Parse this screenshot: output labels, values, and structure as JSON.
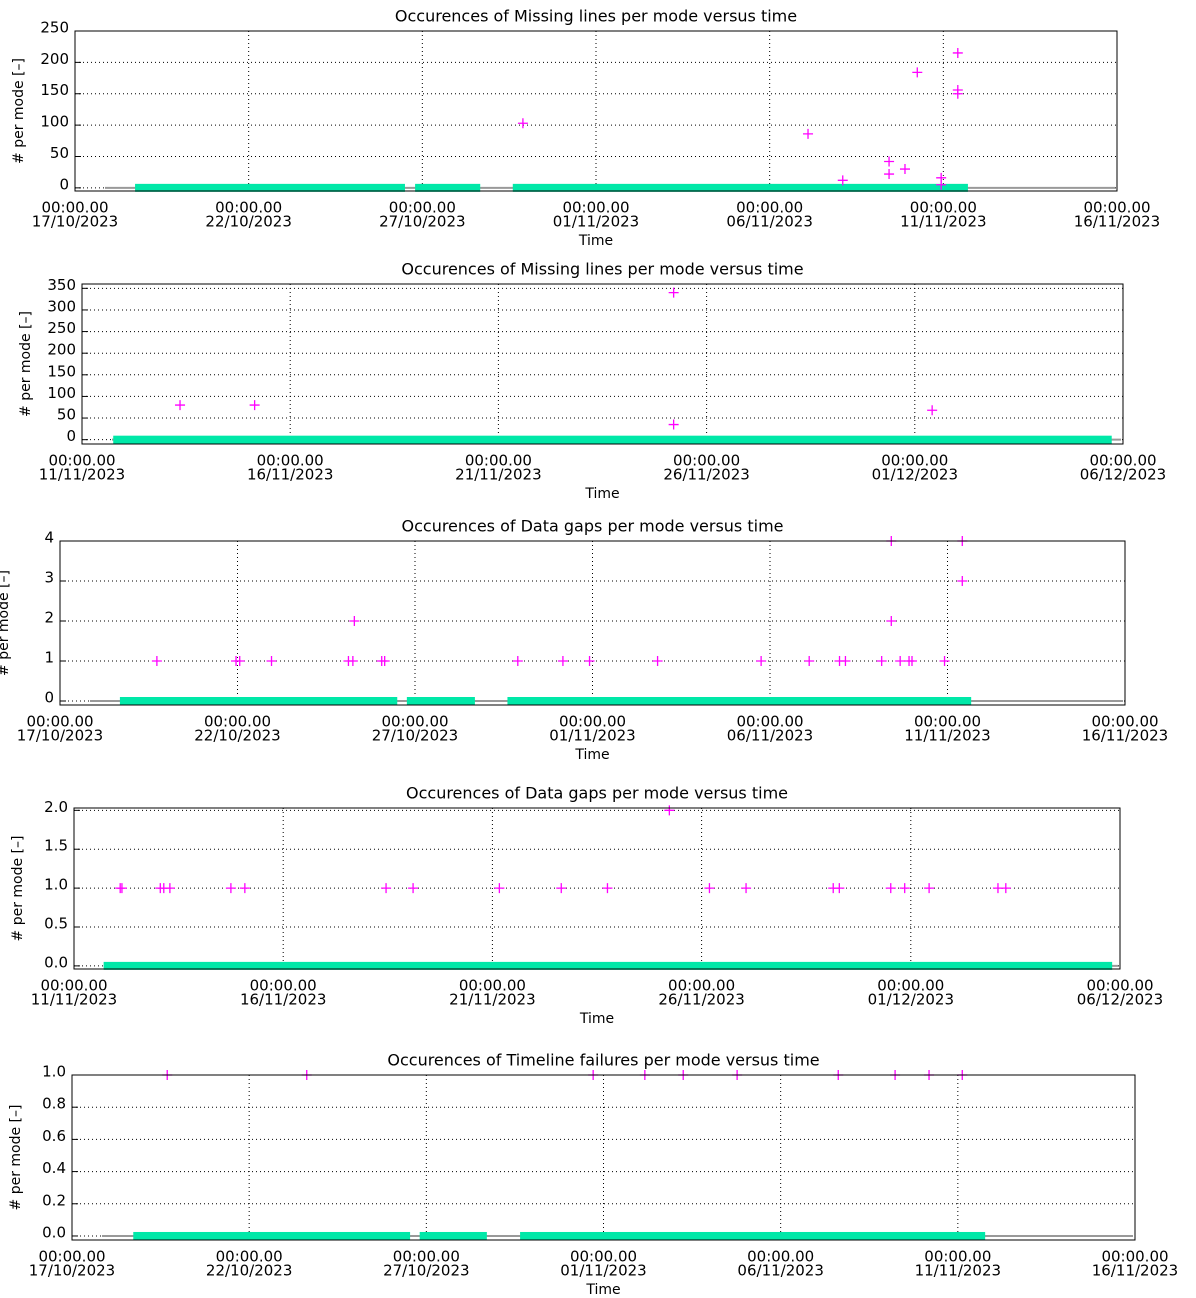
{
  "chart_data": [
    {
      "type": "scatter",
      "title": "Occurences of Missing lines per mode versus time",
      "xlabel": "Time",
      "ylabel": "# per mode [–]",
      "xlim": [
        "2023-10-17T00:00",
        "2023-11-16T00:00"
      ],
      "xticks": [
        {
          "value": "2023-10-17T00:00",
          "label": [
            "00:00.00",
            "17/10/2023"
          ]
        },
        {
          "value": "2023-10-22T00:00",
          "label": [
            "00:00.00",
            "22/10/2023"
          ]
        },
        {
          "value": "2023-10-27T00:00",
          "label": [
            "00:00.00",
            "27/10/2023"
          ]
        },
        {
          "value": "2023-11-01T00:00",
          "label": [
            "00:00.00",
            "01/11/2023"
          ]
        },
        {
          "value": "2023-11-06T00:00",
          "label": [
            "00:00.00",
            "06/11/2023"
          ]
        },
        {
          "value": "2023-11-11T00:00",
          "label": [
            "00:00.00",
            "11/11/2023"
          ]
        },
        {
          "value": "2023-11-16T00:00",
          "label": [
            "00:00.00",
            "16/11/2023"
          ]
        }
      ],
      "ylim": [
        -5,
        250
      ],
      "yticks": [
        0,
        50,
        100,
        150,
        200,
        250
      ],
      "grid": true,
      "color": "#ff00ff",
      "coverage_color": "#00e8a8",
      "x": [
        "2023-10-29T21:30",
        "2023-11-07T02:30",
        "2023-11-08T02:30",
        "2023-11-09T10:30",
        "2023-11-09T10:30",
        "2023-11-09T21:30",
        "2023-11-10T06:00",
        "2023-11-10T22:30",
        "2023-11-10T22:30",
        "2023-11-11T10:00",
        "2023-11-11T10:00",
        "2023-11-11T10:00"
      ],
      "values": [
        103,
        86,
        12,
        42,
        22,
        30,
        184,
        16,
        5,
        215,
        156,
        150
      ],
      "coverage": [
        [
          "2023-10-18T17:30",
          "2023-10-26T12:00"
        ],
        [
          "2023-10-26T19:00",
          "2023-10-28T16:00"
        ],
        [
          "2023-10-29T14:30",
          "2023-11-11T17:00"
        ]
      ]
    },
    {
      "type": "scatter",
      "title": "Occurences of Missing lines per mode versus time",
      "xlabel": "Time",
      "ylabel": "# per mode [–]",
      "xlim": [
        "2023-11-11T00:00",
        "2023-12-06T00:00"
      ],
      "xticks": [
        {
          "value": "2023-11-11T00:00",
          "label": [
            "00:00.00",
            "11/11/2023"
          ]
        },
        {
          "value": "2023-11-16T00:00",
          "label": [
            "00:00.00",
            "16/11/2023"
          ]
        },
        {
          "value": "2023-11-21T00:00",
          "label": [
            "00:00.00",
            "21/11/2023"
          ]
        },
        {
          "value": "2023-11-26T00:00",
          "label": [
            "00:00.00",
            "26/11/2023"
          ]
        },
        {
          "value": "2023-12-01T00:00",
          "label": [
            "00:00.00",
            "01/12/2023"
          ]
        },
        {
          "value": "2023-12-06T00:00",
          "label": [
            "00:00.00",
            "06/12/2023"
          ]
        }
      ],
      "ylim": [
        -10,
        360
      ],
      "yticks": [
        0,
        50,
        100,
        150,
        200,
        250,
        300,
        350
      ],
      "grid": true,
      "color": "#ff00ff",
      "coverage_color": "#00e8a8",
      "x": [
        "2023-11-13T08:30",
        "2023-11-15T03:30",
        "2023-11-25T05:00",
        "2023-11-25T05:00",
        "2023-12-01T10:00"
      ],
      "values": [
        80,
        80,
        340,
        35,
        68
      ],
      "coverage": [
        [
          "2023-11-11T18:00",
          "2023-12-05T17:30"
        ]
      ]
    },
    {
      "type": "scatter",
      "title": "Occurences of Data gaps per mode versus time",
      "xlabel": "Time",
      "ylabel": "# per mode [–]",
      "xlim": [
        "2023-10-17T00:00",
        "2023-11-16T00:00"
      ],
      "xticks": [
        {
          "value": "2023-10-17T00:00",
          "label": [
            "00:00.00",
            "17/10/2023"
          ]
        },
        {
          "value": "2023-10-22T00:00",
          "label": [
            "00:00.00",
            "22/10/2023"
          ]
        },
        {
          "value": "2023-10-27T00:00",
          "label": [
            "00:00.00",
            "27/10/2023"
          ]
        },
        {
          "value": "2023-11-01T00:00",
          "label": [
            "00:00.00",
            "01/11/2023"
          ]
        },
        {
          "value": "2023-11-06T00:00",
          "label": [
            "00:00.00",
            "06/11/2023"
          ]
        },
        {
          "value": "2023-11-11T00:00",
          "label": [
            "00:00.00",
            "11/11/2023"
          ]
        },
        {
          "value": "2023-11-16T00:00",
          "label": [
            "00:00.00",
            "16/11/2023"
          ]
        }
      ],
      "ylim": [
        -0.1,
        4
      ],
      "yticks": [
        0,
        1,
        2,
        3,
        4
      ],
      "grid": true,
      "color": "#ff00ff",
      "coverage_color": "#00e8a8",
      "x": [
        "2023-10-19T17:30",
        "2023-10-21T23:00",
        "2023-10-22T01:30",
        "2023-10-22T23:00",
        "2023-10-25T03:00",
        "2023-10-25T06:00",
        "2023-10-25T07:00",
        "2023-10-26T01:30",
        "2023-10-26T03:30",
        "2023-10-29T21:30",
        "2023-10-31T04:00",
        "2023-10-31T22:00",
        "2023-11-02T20:00",
        "2023-11-05T18:00",
        "2023-11-07T02:30",
        "2023-11-07T23:00",
        "2023-11-08T03:00",
        "2023-11-09T03:30",
        "2023-11-09T10:00",
        "2023-11-09T10:00",
        "2023-11-09T16:00",
        "2023-11-09T22:00",
        "2023-11-10T00:00",
        "2023-11-10T22:00",
        "2023-11-11T10:00",
        "2023-11-11T10:00"
      ],
      "values": [
        1,
        1,
        1,
        1,
        1,
        1,
        2,
        1,
        1,
        1,
        1,
        1,
        1,
        1,
        1,
        1,
        1,
        1,
        4,
        2,
        1,
        1,
        1,
        1,
        4,
        3
      ],
      "coverage": [
        [
          "2023-10-18T16:30",
          "2023-10-26T12:00"
        ],
        [
          "2023-10-26T18:30",
          "2023-10-28T16:30"
        ],
        [
          "2023-10-29T14:30",
          "2023-11-11T16:00"
        ]
      ]
    },
    {
      "type": "scatter",
      "title": "Occurences of Data gaps per mode versus time",
      "xlabel": "Time",
      "ylabel": "# per mode [–]",
      "xlim": [
        "2023-11-11T00:00",
        "2023-12-06T00:00"
      ],
      "xticks": [
        {
          "value": "2023-11-11T00:00",
          "label": [
            "00:00.00",
            "11/11/2023"
          ]
        },
        {
          "value": "2023-11-16T00:00",
          "label": [
            "00:00.00",
            "16/11/2023"
          ]
        },
        {
          "value": "2023-11-21T00:00",
          "label": [
            "00:00.00",
            "21/11/2023"
          ]
        },
        {
          "value": "2023-11-26T00:00",
          "label": [
            "00:00.00",
            "26/11/2023"
          ]
        },
        {
          "value": "2023-12-01T00:00",
          "label": [
            "00:00.00",
            "01/12/2023"
          ]
        },
        {
          "value": "2023-12-06T00:00",
          "label": [
            "00:00.00",
            "06/12/2023"
          ]
        }
      ],
      "ylim": [
        -0.04,
        2.03
      ],
      "yticks": [
        {
          "value": 0,
          "label": "0.0"
        },
        0.5,
        {
          "value": 1,
          "label": "1.0"
        },
        1.5,
        {
          "value": 2,
          "label": "2.0"
        }
      ],
      "grid": true,
      "color": "#ff00ff",
      "coverage_color": "#00e8a8",
      "x": [
        "2023-11-12T02:30",
        "2023-11-12T03:30",
        "2023-11-13T01:30",
        "2023-11-13T03:30",
        "2023-11-13T07:00",
        "2023-11-14T18:00",
        "2023-11-15T02:00",
        "2023-11-18T11:00",
        "2023-11-19T02:30",
        "2023-11-21T04:00",
        "2023-11-22T15:30",
        "2023-11-23T18:00",
        "2023-11-25T05:30",
        "2023-11-26T04:30",
        "2023-11-27T01:30",
        "2023-11-29T03:30",
        "2023-11-29T07:00",
        "2023-11-30T12:30",
        "2023-11-30T20:30",
        "2023-12-01T10:30",
        "2023-12-03T02:00",
        "2023-12-03T06:30"
      ],
      "values": [
        1,
        1,
        1,
        1,
        1,
        1,
        1,
        1,
        1,
        1,
        1,
        1,
        2,
        1,
        1,
        1,
        1,
        1,
        1,
        1,
        1,
        1
      ],
      "coverage": [
        [
          "2023-11-11T17:00",
          "2023-12-05T19:30"
        ]
      ]
    },
    {
      "type": "scatter",
      "title": "Occurences of Timeline failures per mode versus time",
      "xlabel": "Time",
      "ylabel": "# per mode [–]",
      "xlim": [
        "2023-10-17T00:00",
        "2023-11-16T00:00"
      ],
      "xticks": [
        {
          "value": "2023-10-17T00:00",
          "label": [
            "00:00.00",
            "17/10/2023"
          ]
        },
        {
          "value": "2023-10-22T00:00",
          "label": [
            "00:00.00",
            "22/10/2023"
          ]
        },
        {
          "value": "2023-10-27T00:00",
          "label": [
            "00:00.00",
            "27/10/2023"
          ]
        },
        {
          "value": "2023-11-01T00:00",
          "label": [
            "00:00.00",
            "01/11/2023"
          ]
        },
        {
          "value": "2023-11-06T00:00",
          "label": [
            "00:00.00",
            "06/11/2023"
          ]
        },
        {
          "value": "2023-11-11T00:00",
          "label": [
            "00:00.00",
            "11/11/2023"
          ]
        },
        {
          "value": "2023-11-16T00:00",
          "label": [
            "00:00.00",
            "16/11/2023"
          ]
        }
      ],
      "ylim": [
        -0.025,
        1
      ],
      "yticks": [
        {
          "value": 0,
          "label": "0.0"
        },
        0.2,
        0.4,
        0.6,
        0.8,
        {
          "value": 1,
          "label": "1.0"
        }
      ],
      "grid": true,
      "color": "#ff00ff",
      "coverage_color": "#00e8a8",
      "x": [
        "2023-10-19T16:30",
        "2023-10-23T15:00",
        "2023-10-31T17:00",
        "2023-11-02T04:00",
        "2023-11-03T06:00",
        "2023-11-04T18:30",
        "2023-11-07T15:00",
        "2023-11-09T05:30",
        "2023-11-10T04:30",
        "2023-11-11T03:00"
      ],
      "values": [
        1,
        1,
        1,
        1,
        1,
        1,
        1,
        1,
        1,
        1
      ],
      "coverage": [
        [
          "2023-10-18T17:30",
          "2023-10-26T13:00"
        ],
        [
          "2023-10-26T19:30",
          "2023-10-28T17:00"
        ],
        [
          "2023-10-29T15:30",
          "2023-11-11T18:30"
        ]
      ]
    }
  ]
}
